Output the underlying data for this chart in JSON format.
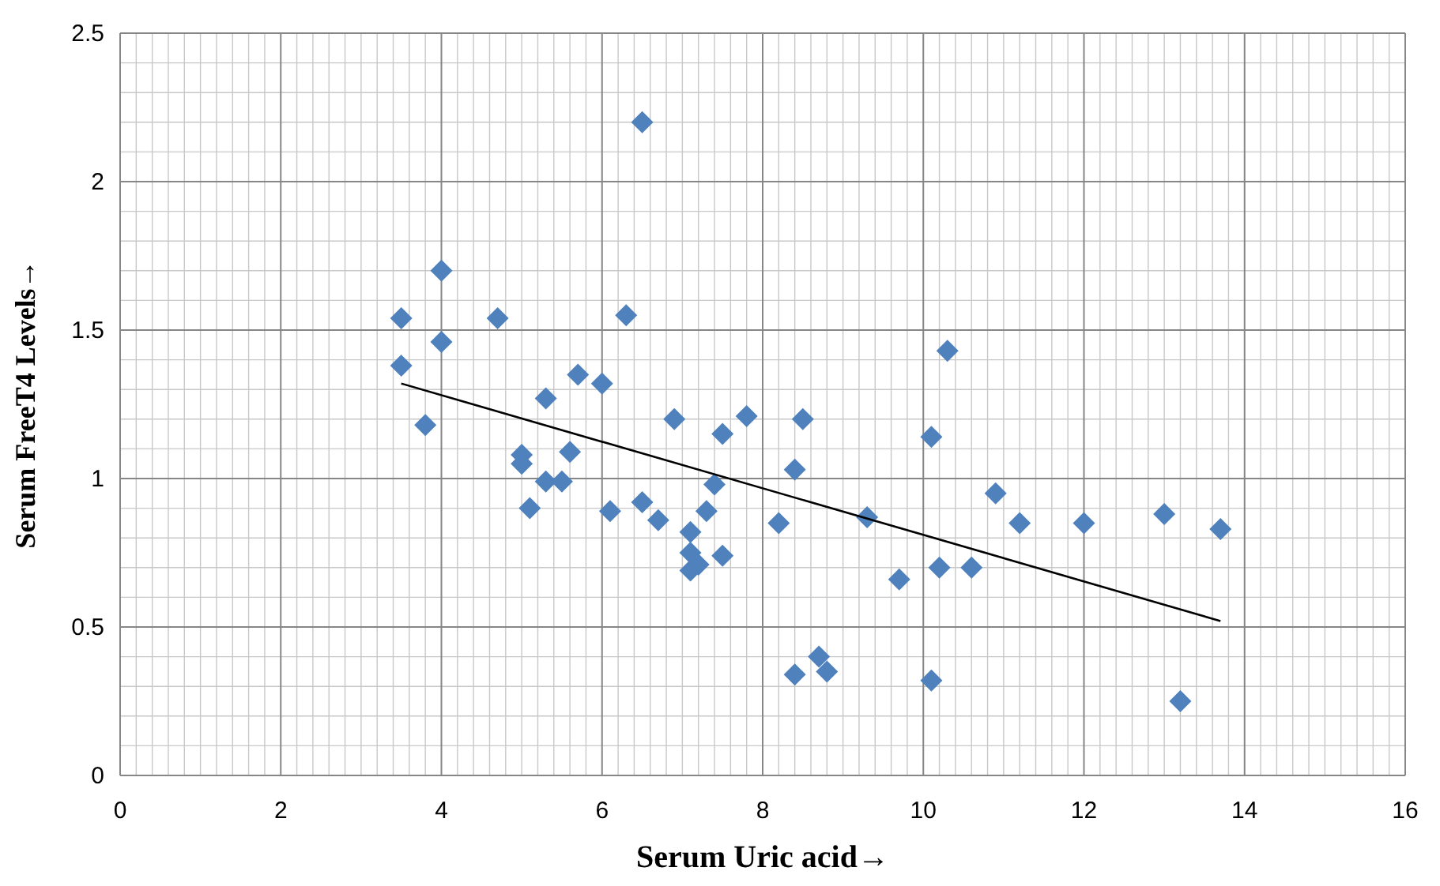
{
  "chart_data": {
    "type": "scatter",
    "xlabel": "Serum Uric acid→",
    "ylabel": "Serum FreeT4 Levels→",
    "xlim": [
      0,
      16
    ],
    "ylim": [
      0,
      2.5
    ],
    "xticks": [
      0,
      2,
      4,
      6,
      8,
      10,
      12,
      14,
      16
    ],
    "yticks": [
      0,
      0.5,
      1,
      1.5,
      2,
      2.5
    ],
    "grid": true,
    "series": [
      {
        "marker": "diamond",
        "color": "#4f81bd",
        "x": [
          3.5,
          3.5,
          3.8,
          4,
          4,
          4.7,
          5.3,
          5,
          5,
          5.1,
          5.3,
          5.5,
          5.6,
          5.7,
          6,
          6.1,
          6.3,
          6.5,
          6.5,
          6.7,
          6.9,
          7.1,
          7.1,
          7.1,
          7.2,
          7.3,
          7.4,
          7.5,
          7.5,
          7.8,
          8.2,
          8.4,
          8.4,
          8.5,
          8.7,
          8.8,
          9.3,
          9.7,
          10.1,
          10.1,
          10.2,
          10.3,
          10.6,
          10.9,
          11.2,
          12,
          13,
          13.2,
          13.7
        ],
        "values": [
          1.54,
          1.38,
          1.18,
          1.7,
          1.46,
          1.54,
          1.27,
          1.08,
          1.05,
          0.9,
          0.99,
          0.99,
          1.09,
          1.35,
          1.32,
          0.89,
          1.55,
          2.2,
          0.92,
          0.86,
          1.2,
          0.82,
          0.75,
          0.69,
          0.71,
          0.89,
          0.98,
          1.15,
          0.74,
          1.21,
          0.85,
          1.03,
          0.34,
          1.2,
          0.4,
          0.35,
          0.87,
          0.66,
          1.14,
          0.32,
          0.7,
          1.43,
          0.7,
          0.95,
          0.85,
          0.85,
          0.88,
          0.25,
          0.83
        ]
      },
      {
        "type": "line",
        "color": "#000000",
        "x": [
          3.5,
          13.7
        ],
        "values": [
          1.32,
          0.52
        ]
      }
    ]
  }
}
